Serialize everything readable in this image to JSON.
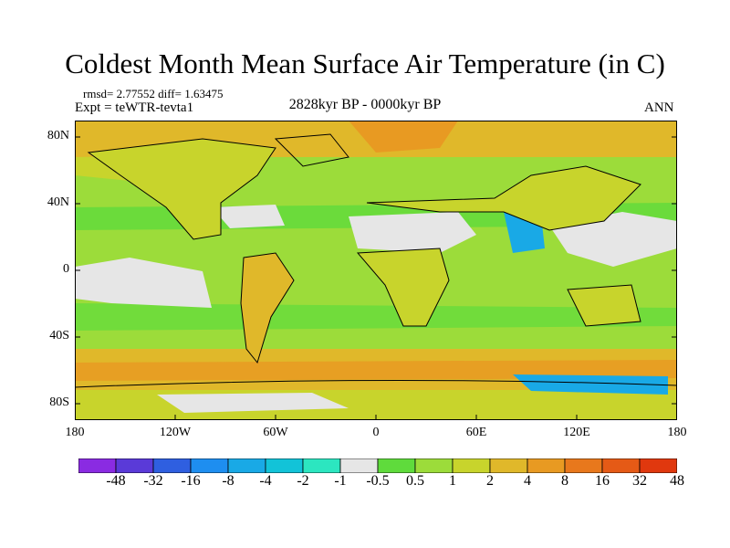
{
  "title": "Coldest Month Mean Surface Air Temperature (in C)",
  "stats": "rmsd= 2.77552  diff= 1.63475",
  "experiment": "Expt = teWTR-tevta1",
  "period": "2828kyr BP - 0000kyr BP",
  "season": "ANN",
  "map": {
    "y_ticks": [
      "80N",
      "40N",
      "0",
      "40S",
      "80S"
    ],
    "x_ticks": [
      "180",
      "120W",
      "60W",
      "0",
      "60E",
      "120E",
      "180"
    ]
  },
  "colorbar": {
    "colors": [
      "#8a2be2",
      "#5a3ad8",
      "#2f5fe0",
      "#1e8ef0",
      "#19a9e6",
      "#12c3d8",
      "#2ce6c0",
      "#e6e6e6",
      "#5fdb3c",
      "#9cdc3a",
      "#c8d42c",
      "#e0b82a",
      "#e89a22",
      "#e8781c",
      "#e55a16",
      "#e0380e"
    ],
    "labels": [
      "-48",
      "-32",
      "-16",
      "-8",
      "-4",
      "-2",
      "-1",
      "-0.5",
      "0.5",
      "1",
      "2",
      "4",
      "8",
      "16",
      "32",
      "48"
    ]
  }
}
